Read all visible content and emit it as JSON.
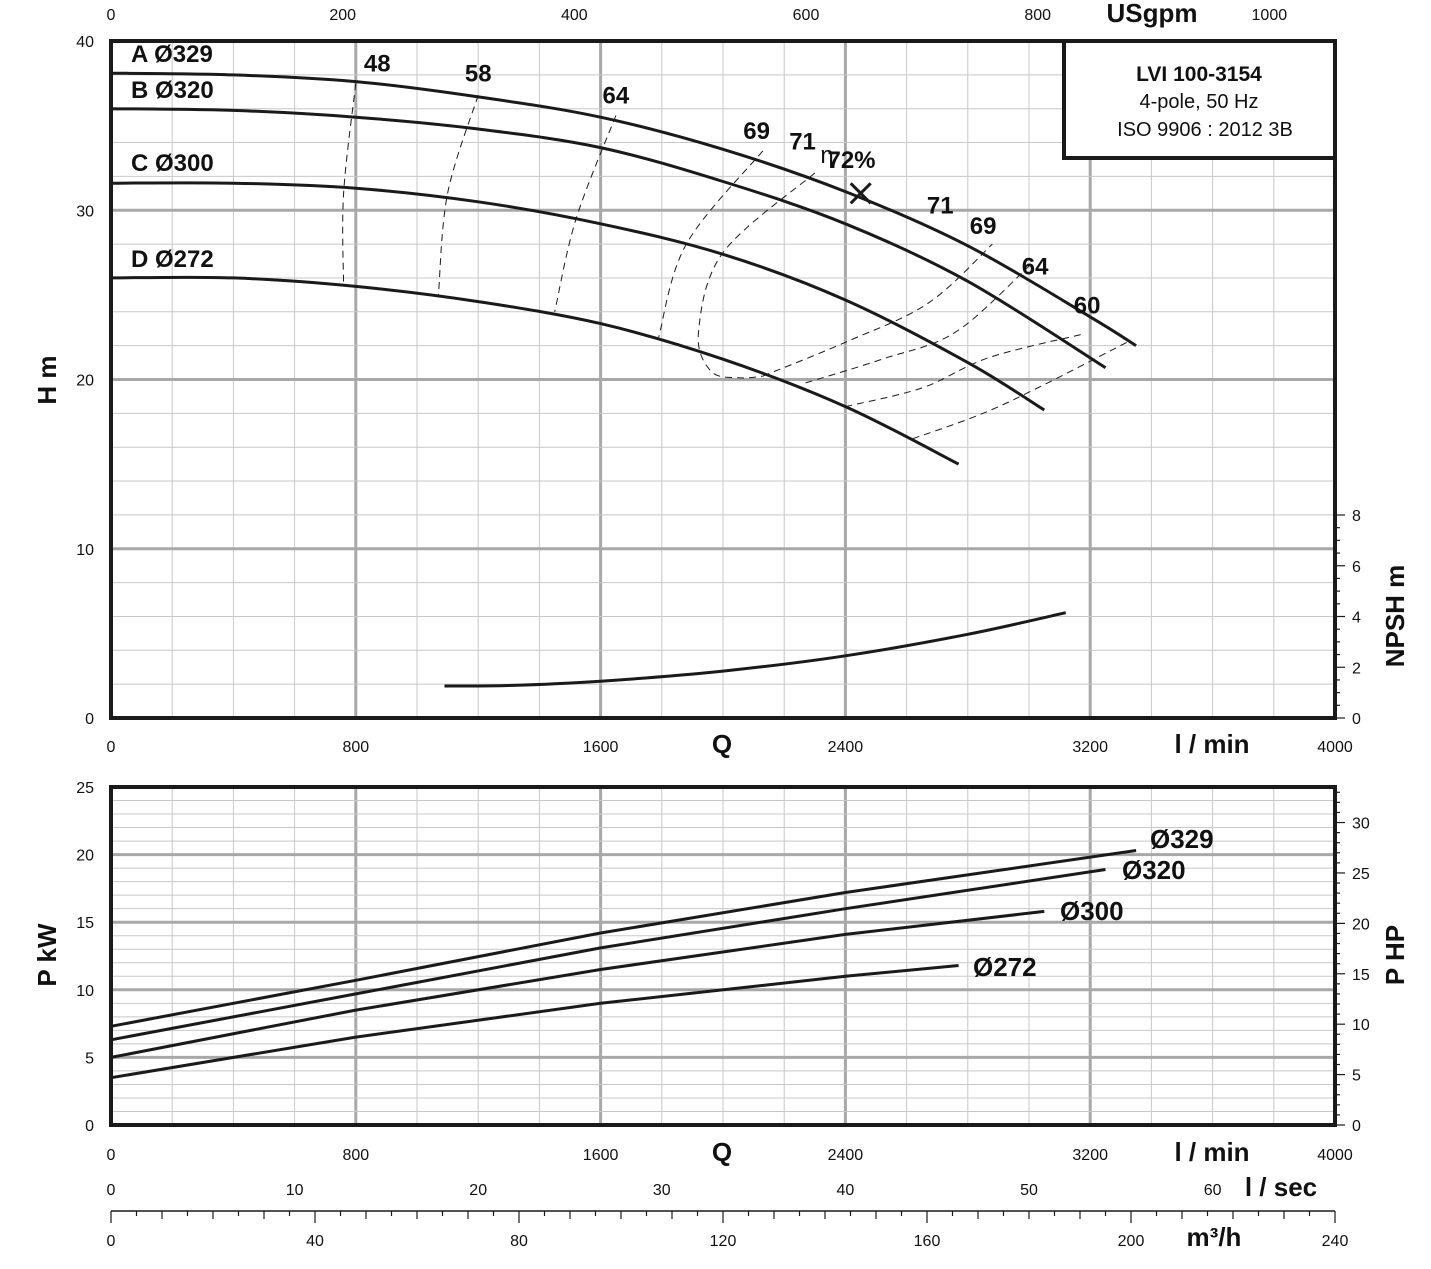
{
  "chart_data": [
    {
      "type": "line",
      "x_units": "l / min",
      "x_units_top": "USgpm",
      "x_axis_letter": "Q",
      "ylabel": "H m",
      "ylabel_right": "NPSH m",
      "xlim": [
        0,
        4000
      ],
      "ylim": [
        0,
        40
      ],
      "x_ticks": [
        0,
        800,
        1600,
        2400,
        3200,
        4000
      ],
      "y_ticks": [
        0,
        10,
        20,
        30,
        40
      ],
      "usgpm_ticks": [
        0,
        200,
        400,
        600,
        800,
        1000
      ],
      "npsh_ticks": [
        0,
        2,
        4,
        6,
        8
      ],
      "info_box": [
        "LVI 100-3154",
        "4-pole, 50 Hz",
        "ISO 9906 : 2012 3B"
      ],
      "series": [
        {
          "name": "A Ø329",
          "x": [
            0,
            400,
            800,
            1200,
            1600,
            2000,
            2400,
            2800,
            3200,
            3350
          ],
          "y": [
            38.1,
            38.0,
            37.6,
            36.7,
            35.5,
            33.6,
            31.1,
            27.9,
            23.7,
            22.0
          ]
        },
        {
          "name": "B Ø320",
          "x": [
            0,
            400,
            800,
            1200,
            1600,
            2000,
            2400,
            2800,
            3250
          ],
          "y": [
            36.0,
            35.9,
            35.5,
            34.8,
            33.7,
            31.7,
            29.2,
            25.8,
            20.7
          ]
        },
        {
          "name": "C Ø300",
          "x": [
            0,
            400,
            800,
            1200,
            1600,
            2000,
            2400,
            2800,
            3050
          ],
          "y": [
            31.6,
            31.6,
            31.3,
            30.5,
            29.2,
            27.4,
            24.7,
            21.0,
            18.2
          ]
        },
        {
          "name": "D Ø272",
          "x": [
            0,
            400,
            800,
            1200,
            1600,
            2000,
            2400,
            2770
          ],
          "y": [
            26.0,
            26.0,
            25.5,
            24.6,
            23.3,
            21.2,
            18.4,
            15.0
          ]
        }
      ],
      "npsh_curve": {
        "x": [
          1090,
          1300,
          1600,
          2000,
          2400,
          2800,
          3120
        ],
        "y": [
          1.26,
          1.28,
          1.45,
          1.85,
          2.45,
          3.3,
          4.15
        ]
      },
      "efficiency_labels": [
        {
          "text": "48",
          "x": 870,
          "y": 38.2
        },
        {
          "text": "58",
          "x": 1200,
          "y": 37.6
        },
        {
          "text": "64",
          "x": 1650,
          "y": 36.3
        },
        {
          "text": "69",
          "x": 2110,
          "y": 34.2
        },
        {
          "text": "71",
          "x": 2260,
          "y": 33.6
        },
        {
          "text": "η",
          "x": 2340,
          "y": 32.8
        },
        {
          "text": "72%",
          "x": 2420,
          "y": 32.5
        },
        {
          "text": "71",
          "x": 2710,
          "y": 29.8
        },
        {
          "text": "69",
          "x": 2850,
          "y": 28.6
        },
        {
          "text": "64",
          "x": 3020,
          "y": 26.2
        },
        {
          "text": "60",
          "x": 3190,
          "y": 23.9
        }
      ],
      "efficiency_contours": [
        {
          "x": [
            800,
            760,
            760
          ],
          "y": [
            37.5,
            31.0,
            25.5
          ]
        },
        {
          "x": [
            1200,
            1100,
            1070
          ],
          "y": [
            36.8,
            31.0,
            25.0
          ]
        },
        {
          "x": [
            1650,
            1520,
            1450
          ],
          "y": [
            35.6,
            29.5,
            24.0
          ]
        },
        {
          "x": [
            2130,
            1880,
            1790
          ],
          "y": [
            33.5,
            28.0,
            22.5
          ]
        },
        {
          "x": [
            2300,
            2000,
            1920,
            1960,
            2050,
            2130
          ],
          "y": [
            32.2,
            27.5,
            22.8,
            20.5,
            20.1,
            20.2
          ]
        },
        {
          "x": [
            2130,
            2400,
            2670,
            2880
          ],
          "y": [
            20.2,
            22.2,
            24.5,
            28.0
          ]
        },
        {
          "x": [
            2270,
            2520,
            2760,
            3000
          ],
          "y": [
            19.8,
            21.2,
            22.8,
            26.7
          ]
        },
        {
          "x": [
            2400,
            2650,
            2870,
            3180
          ],
          "y": [
            18.4,
            19.5,
            21.3,
            22.7
          ]
        },
        {
          "x": [
            2620,
            2850,
            3050,
            3320
          ],
          "y": [
            16.5,
            18.0,
            19.7,
            22.2
          ]
        }
      ],
      "bep_marker": {
        "x": 2450,
        "y": 31.0
      }
    },
    {
      "type": "line",
      "x_units": "l / min",
      "x_axis_letter": "Q",
      "ylabel": "P kW",
      "ylabel_right": "P HP",
      "xlim": [
        0,
        4000
      ],
      "ylim": [
        0,
        25
      ],
      "x_ticks": [
        0,
        800,
        1600,
        2400,
        3200,
        4000
      ],
      "y_ticks": [
        0,
        5,
        10,
        15,
        20,
        25
      ],
      "hp_ticks": [
        0,
        5,
        10,
        15,
        20,
        25,
        30
      ],
      "lsec_ticks": [
        0,
        10,
        20,
        30,
        40,
        50,
        60
      ],
      "lsec_units": "l / sec",
      "m3h_ticks": [
        0,
        40,
        80,
        120,
        160,
        200,
        240
      ],
      "m3h_units": "m³/h",
      "series": [
        {
          "name": "Ø329",
          "x": [
            0,
            800,
            1600,
            2400,
            3350
          ],
          "y": [
            7.3,
            10.7,
            14.2,
            17.2,
            20.3
          ]
        },
        {
          "name": "Ø320",
          "x": [
            0,
            800,
            1600,
            2400,
            3250
          ],
          "y": [
            6.3,
            9.7,
            13.1,
            16.0,
            18.9
          ]
        },
        {
          "name": "Ø300",
          "x": [
            0,
            800,
            1600,
            2400,
            3050
          ],
          "y": [
            5.0,
            8.5,
            11.5,
            14.1,
            15.8
          ]
        },
        {
          "name": "Ø272",
          "x": [
            0,
            800,
            1600,
            2400,
            2770
          ],
          "y": [
            3.5,
            6.5,
            9.0,
            11.0,
            11.8
          ]
        }
      ]
    }
  ],
  "colors": {
    "grid_major": "#a8a8a8",
    "grid_minor": "#c8c8c8",
    "frame": "#1a1a1a",
    "curve": "#1a1a1a"
  }
}
